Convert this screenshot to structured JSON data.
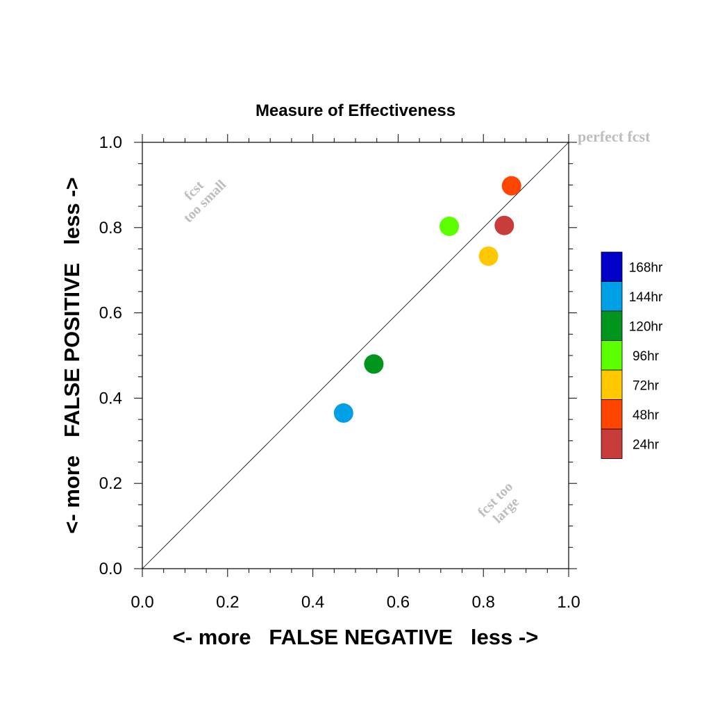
{
  "chart_data": {
    "type": "scatter",
    "title": "Measure of Effectiveness",
    "xlabel": "<- more   FALSE NEGATIVE   less ->",
    "ylabel": "<- more   FALSE POSITIVE   less ->",
    "xlim": [
      0.0,
      1.0
    ],
    "ylim": [
      0.0,
      1.0
    ],
    "xticks": [
      "0.0",
      "0.2",
      "0.4",
      "0.6",
      "0.8",
      "1.0"
    ],
    "yticks": [
      "0.0",
      "0.2",
      "0.4",
      "0.6",
      "0.8",
      "1.0"
    ],
    "grid": false,
    "reference_line": {
      "from": [
        0,
        0
      ],
      "to": [
        1,
        1
      ],
      "color": "#000000"
    },
    "annotations": {
      "perfect": "perfect fcst",
      "small_line1": "fcst",
      "small_line2": "too small",
      "large_line1": "fcst too",
      "large_line2": "large"
    },
    "legend_position": "right",
    "legend": [
      {
        "label": "168hr",
        "color": "#0000C8"
      },
      {
        "label": "144hr",
        "color": "#00A0E6"
      },
      {
        "label": "120hr",
        "color": "#00961E"
      },
      {
        "label": "96hr",
        "color": "#5AFF00"
      },
      {
        "label": "72hr",
        "color": "#FFC800"
      },
      {
        "label": "48hr",
        "color": "#FF4600"
      },
      {
        "label": "24hr",
        "color": "#C83C3C"
      }
    ],
    "points": [
      {
        "series": "144hr",
        "x": 0.472,
        "y": 0.365,
        "color": "#00A0E6"
      },
      {
        "series": "120hr",
        "x": 0.543,
        "y": 0.48,
        "color": "#00961E"
      },
      {
        "series": "96hr",
        "x": 0.72,
        "y": 0.803,
        "color": "#5AFF00"
      },
      {
        "series": "72hr",
        "x": 0.812,
        "y": 0.733,
        "color": "#FFC800"
      },
      {
        "series": "48hr",
        "x": 0.866,
        "y": 0.898,
        "color": "#FF4600"
      },
      {
        "series": "24hr",
        "x": 0.849,
        "y": 0.805,
        "color": "#C83C3C"
      }
    ]
  }
}
